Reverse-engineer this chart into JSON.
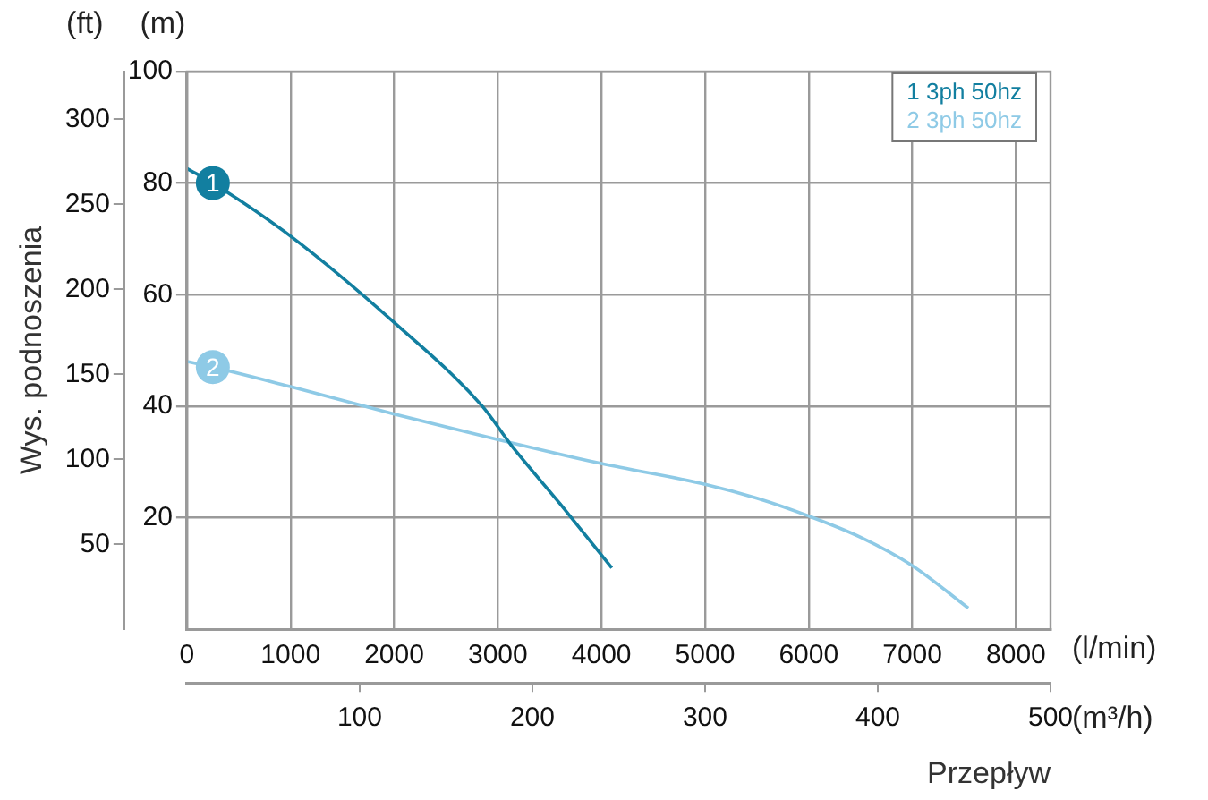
{
  "chart_data": {
    "type": "line",
    "xlabel": "Przepływ",
    "ylabel": "Wys. podnoszenia",
    "series": [
      {
        "name": "1 3ph 50hz",
        "color": "#127fa0",
        "axis": "y2",
        "x": [
          0,
          250,
          1000,
          2000,
          2850,
          3130,
          3600,
          4100
        ],
        "values": [
          82.6,
          80,
          70.5,
          55,
          40,
          33,
          22.5,
          11
        ]
      },
      {
        "name": "2 3ph 50hz",
        "color": "#8ecae6",
        "axis": "y2",
        "x": [
          0,
          250,
          1000,
          2000,
          3000,
          4000,
          5000,
          5500,
          6000,
          6500,
          7000,
          7540
        ],
        "values": [
          48,
          47,
          43.5,
          38.6,
          34,
          29.7,
          26,
          23.5,
          20.3,
          16.5,
          11.4,
          3.8
        ]
      }
    ],
    "xlim": [
      0,
      8333.33
    ],
    "xticks": [
      0,
      1000,
      2000,
      3000,
      4000,
      5000,
      6000,
      7000,
      8000
    ],
    "x2lim": [
      0,
      500
    ],
    "x2ticks": [
      100,
      200,
      300,
      400,
      500
    ],
    "ylim": [
      0,
      328.08
    ],
    "yticks": [
      50,
      100,
      150,
      200,
      250,
      300
    ],
    "y2lim": [
      0,
      100
    ],
    "y2ticks": [
      20,
      40,
      60,
      80,
      100
    ],
    "annotations": [
      "(ft)",
      "(m)",
      "(l/min)",
      "(m³/h)",
      "1",
      "2"
    ],
    "grid": true,
    "legend": "top right",
    "marker": "none",
    "line_style": "solid"
  }
}
